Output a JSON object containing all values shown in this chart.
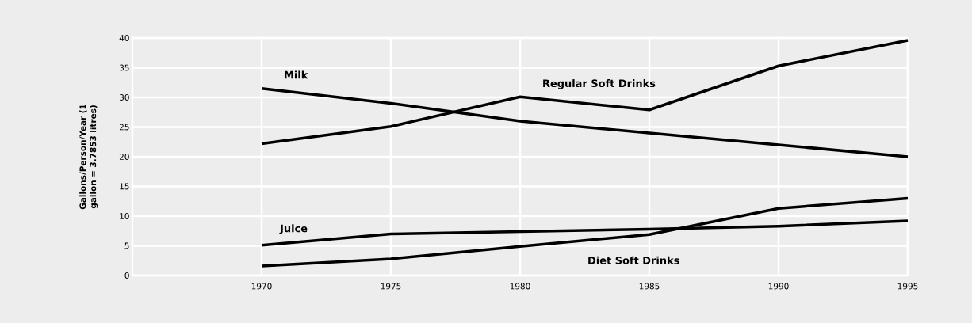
{
  "chart_data": {
    "type": "line",
    "ylabel": "Gallons/Person/Year (1 gallon = 3.7853 litres)",
    "x": [
      1970,
      1975,
      1980,
      1985,
      1990,
      1995
    ],
    "xlim": [
      1965,
      1995
    ],
    "xticks": [
      1970,
      1975,
      1980,
      1985,
      1990,
      1995
    ],
    "ylim": [
      0,
      40
    ],
    "yticks": [
      0,
      5,
      10,
      15,
      20,
      25,
      30,
      35,
      40
    ],
    "grid": true,
    "marker": "none",
    "line_style": "solid",
    "series": [
      {
        "name": "Milk",
        "color": "#000000",
        "values": [
          31.5,
          29,
          26,
          24,
          22,
          20
        ]
      },
      {
        "name": "Regular Soft Drinks",
        "color": "#000000",
        "values": [
          22.2,
          25.1,
          30.1,
          27.9,
          35.3,
          39.6
        ]
      },
      {
        "name": "Juice",
        "color": "#000000",
        "values": [
          5.1,
          7,
          7.4,
          7.8,
          8.3,
          9.2
        ]
      },
      {
        "name": "Diet Soft Drinks",
        "color": "#000000",
        "values": [
          1.6,
          2.8,
          4.9,
          6.9,
          11.3,
          13
        ]
      }
    ]
  }
}
